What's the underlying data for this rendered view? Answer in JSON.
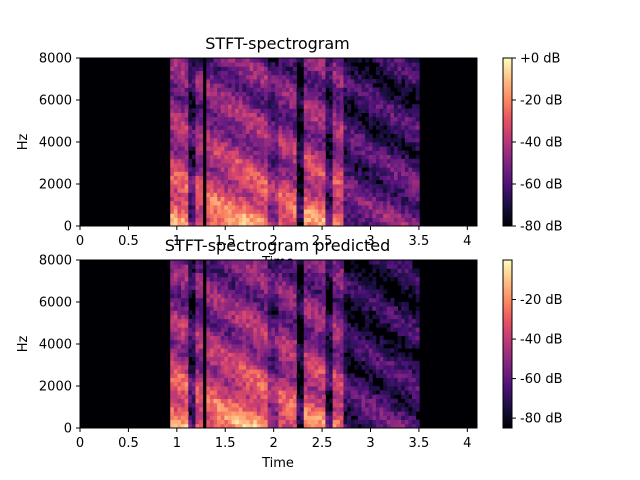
{
  "chart_data": [
    {
      "type": "heatmap",
      "title": "STFT-spectrogram",
      "xlabel": "Time",
      "ylabel": "Hz",
      "xlim": [
        0,
        4.1
      ],
      "ylim": [
        0,
        8000
      ],
      "x_ticks": [
        0,
        0.5,
        1,
        1.5,
        2,
        2.5,
        3,
        3.5,
        4
      ],
      "x_tick_labels": [
        "0",
        "0.5",
        "1",
        "1.5",
        "2",
        "2.5",
        "3",
        "3.5",
        "4"
      ],
      "y_ticks": [
        0,
        2000,
        4000,
        6000,
        8000
      ],
      "y_tick_labels": [
        "0",
        "2000",
        "4000",
        "6000",
        "8000"
      ],
      "colorbar": {
        "range_db": [
          -80,
          0
        ],
        "ticks": [
          0,
          -20,
          -40,
          -60,
          -80
        ],
        "tick_labels": [
          "+0 dB",
          "-20 dB",
          "-40 dB",
          "-60 dB",
          "-80 dB"
        ],
        "colormap": "magma"
      },
      "energy_segments": [
        {
          "start": 0.93,
          "end": 1.12,
          "level": 0.85
        },
        {
          "start": 1.12,
          "end": 1.2,
          "level": 0.35
        },
        {
          "start": 1.2,
          "end": 1.27,
          "level": 0.75
        },
        {
          "start": 1.3,
          "end": 1.6,
          "level": 0.8
        },
        {
          "start": 1.6,
          "end": 1.95,
          "level": 0.82
        },
        {
          "start": 1.95,
          "end": 2.05,
          "level": 0.55
        },
        {
          "start": 2.05,
          "end": 2.25,
          "level": 0.75
        },
        {
          "start": 2.25,
          "end": 2.32,
          "level": 0.15
        },
        {
          "start": 2.32,
          "end": 2.55,
          "level": 0.8
        },
        {
          "start": 2.55,
          "end": 2.62,
          "level": 0.3
        },
        {
          "start": 2.62,
          "end": 2.72,
          "level": 0.78
        },
        {
          "start": 2.72,
          "end": 3.5,
          "level": 0.38
        }
      ]
    },
    {
      "type": "heatmap",
      "title": "STFT-spectrogram predicted",
      "xlabel": "Time",
      "ylabel": "Hz",
      "xlim": [
        0,
        4.1
      ],
      "ylim": [
        0,
        8000
      ],
      "x_ticks": [
        0,
        0.5,
        1,
        1.5,
        2,
        2.5,
        3,
        3.5,
        4
      ],
      "x_tick_labels": [
        "0",
        "0.5",
        "1",
        "1.5",
        "2",
        "2.5",
        "3",
        "3.5",
        "4"
      ],
      "y_ticks": [
        0,
        2000,
        4000,
        6000,
        8000
      ],
      "y_tick_labels": [
        "0",
        "2000",
        "4000",
        "6000",
        "8000"
      ],
      "colorbar": {
        "range_db": [
          -85,
          0
        ],
        "ticks": [
          -20,
          -40,
          -60,
          -80
        ],
        "tick_labels": [
          "-20 dB",
          "-40 dB",
          "-60 dB",
          "-80 dB"
        ],
        "colormap": "magma"
      },
      "energy_segments": [
        {
          "start": 0.93,
          "end": 1.12,
          "level": 0.85
        },
        {
          "start": 1.12,
          "end": 1.2,
          "level": 0.3
        },
        {
          "start": 1.2,
          "end": 1.27,
          "level": 0.75
        },
        {
          "start": 1.3,
          "end": 1.6,
          "level": 0.8
        },
        {
          "start": 1.6,
          "end": 1.95,
          "level": 0.85
        },
        {
          "start": 1.95,
          "end": 2.05,
          "level": 0.55
        },
        {
          "start": 2.05,
          "end": 2.25,
          "level": 0.75
        },
        {
          "start": 2.25,
          "end": 2.32,
          "level": 0.12
        },
        {
          "start": 2.32,
          "end": 2.55,
          "level": 0.78
        },
        {
          "start": 2.55,
          "end": 2.62,
          "level": 0.25
        },
        {
          "start": 2.62,
          "end": 2.72,
          "level": 0.75
        },
        {
          "start": 2.72,
          "end": 3.5,
          "level": 0.28
        }
      ]
    }
  ]
}
